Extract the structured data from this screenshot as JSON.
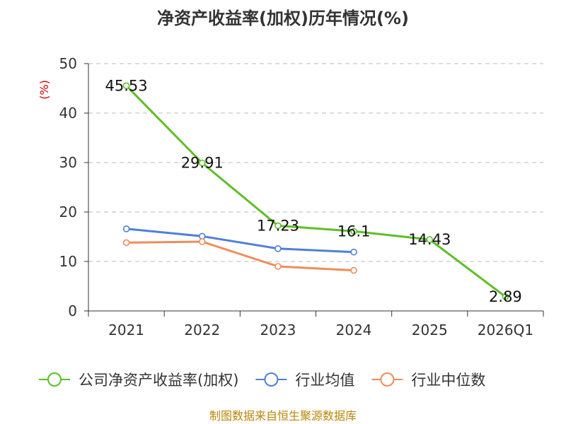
{
  "chart_data": {
    "type": "line",
    "title": "净资产收益率(加权)历年情况(%)",
    "ylabel": "(%)",
    "categories": [
      "2021",
      "2022",
      "2023",
      "2024",
      "2025",
      "2026Q1"
    ],
    "y_ticks": [
      "0",
      "10",
      "20",
      "30",
      "40",
      "50"
    ],
    "ylim": [
      0,
      50
    ],
    "grid": true,
    "legend_position": "bottom",
    "series": [
      {
        "name": "公司净资产收益率(加权)",
        "color": "#5cbf26",
        "values": [
          45.53,
          29.91,
          17.23,
          16.1,
          14.43,
          2.89
        ],
        "labels": [
          "45.53",
          "29.91",
          "17.23",
          "16.1",
          "14.43",
          "2.89"
        ]
      },
      {
        "name": "行业均值",
        "color": "#4f7fd8",
        "values": [
          16.6,
          15.1,
          12.6,
          11.9,
          null,
          null
        ]
      },
      {
        "name": "行业中位数",
        "color": "#f08c5a",
        "values": [
          13.8,
          14.0,
          9.0,
          8.2,
          null,
          null
        ]
      }
    ]
  },
  "source_text": "制图数据来自恒生聚源数据库"
}
